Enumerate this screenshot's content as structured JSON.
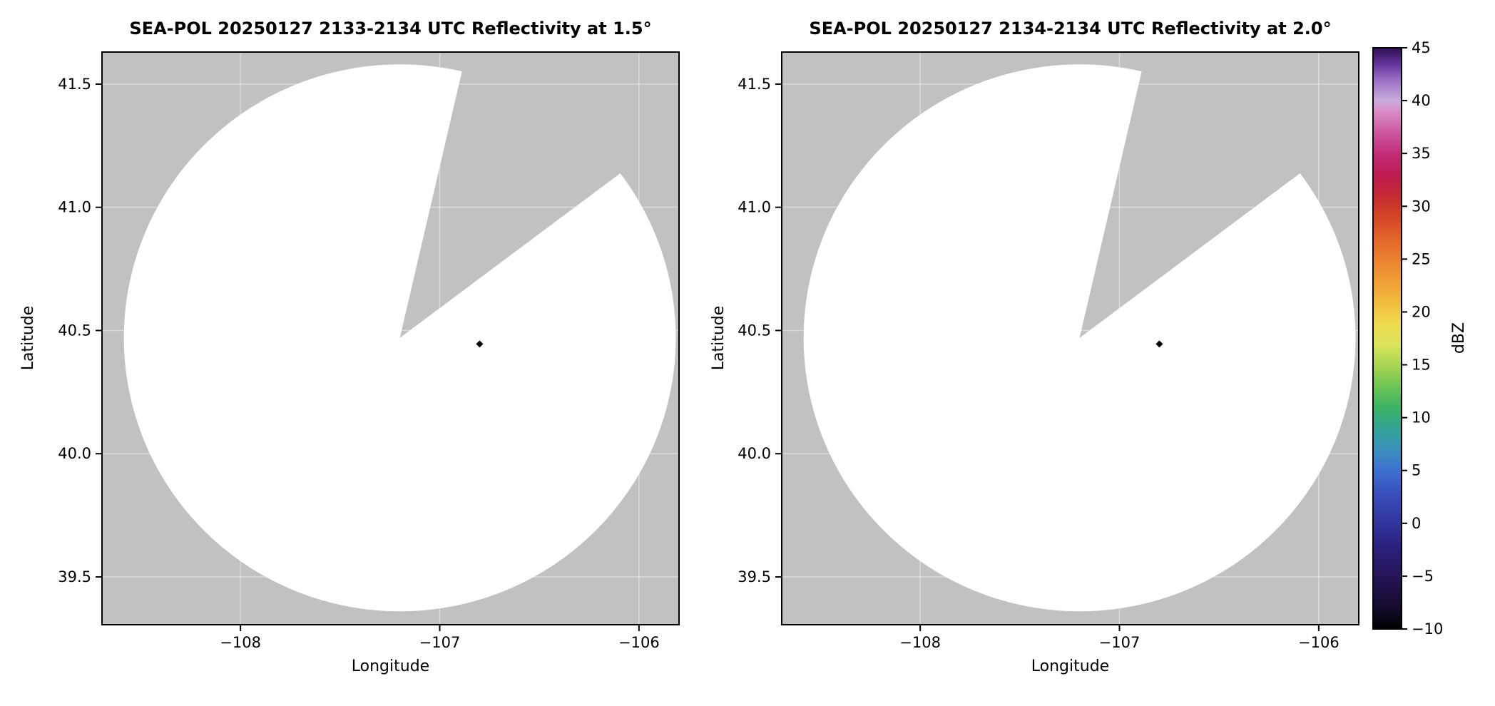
{
  "chart_data": {
    "type": "heatmap",
    "description": "Two side-by-side SEA-POL radar PPI reflectivity maps on latitude/longitude axes sharing a single dBZ colorbar. Radar coverage circle is white (no significant echo), area outside coverage and a blocked sector to the north-northeast is gray. One tiny near-threshold echo pixel appears east of the radar in each panel.",
    "panels": [
      {
        "title": "SEA-POL 20250127 2133-2134 UTC Reflectivity at 1.5°",
        "xlabel": "Longitude",
        "ylabel": "Latitude",
        "xlim": [
          -108.695,
          -105.799
        ],
        "ylim": [
          39.306,
          41.63
        ],
        "xticks": {
          "values": [
            -108,
            -107,
            -106
          ],
          "labels": [
            "−108",
            "−107",
            "−106"
          ]
        },
        "yticks": {
          "values": [
            39.5,
            40.0,
            40.5,
            41.0,
            41.5
          ],
          "labels": [
            "39.5",
            "40.0",
            "40.5",
            "41.0",
            "41.5"
          ]
        },
        "radar_coverage": {
          "center": {
            "lon": -107.2,
            "lat": 40.47
          },
          "radius_deg_lon": 1.385,
          "radius_deg_lat": 1.11,
          "blocked_sector_azimuth_deg": [
            13,
            53
          ],
          "inside_color": "#ffffff",
          "outside_color": "#c1c1c1"
        },
        "echoes": [
          {
            "lon": -106.8,
            "lat": 40.445,
            "approx_dbz": -10,
            "color": "#000000"
          }
        ],
        "grid": true
      },
      {
        "title": "SEA-POL 20250127 2134-2134 UTC Reflectivity at 2.0°",
        "xlabel": "Longitude",
        "ylabel": "Latitude",
        "xlim": [
          -108.695,
          -105.799
        ],
        "ylim": [
          39.306,
          41.63
        ],
        "xticks": {
          "values": [
            -108,
            -107,
            -106
          ],
          "labels": [
            "−108",
            "−107",
            "−106"
          ]
        },
        "yticks": {
          "values": [
            39.5,
            40.0,
            40.5,
            41.0,
            41.5
          ],
          "labels": [
            "39.5",
            "40.0",
            "40.5",
            "41.0",
            "41.5"
          ]
        },
        "radar_coverage": {
          "center": {
            "lon": -107.2,
            "lat": 40.47
          },
          "radius_deg_lon": 1.385,
          "radius_deg_lat": 1.11,
          "blocked_sector_azimuth_deg": [
            13,
            53
          ],
          "inside_color": "#ffffff",
          "outside_color": "#c1c1c1"
        },
        "echoes": [
          {
            "lon": -106.8,
            "lat": 40.445,
            "approx_dbz": -10,
            "color": "#000000"
          }
        ],
        "grid": true
      }
    ],
    "colorbar": {
      "label": "dBZ",
      "min": -10,
      "max": 45,
      "ticks": [
        -10,
        -5,
        0,
        5,
        10,
        15,
        20,
        25,
        30,
        35,
        40,
        45
      ],
      "tick_labels": [
        "−10",
        "−5",
        "0",
        "5",
        "10",
        "15",
        "20",
        "25",
        "30",
        "35",
        "40",
        "45"
      ],
      "stops": [
        {
          "value": -10,
          "color": "#000000"
        },
        {
          "value": -8,
          "color": "#140b2b"
        },
        {
          "value": -5,
          "color": "#241457"
        },
        {
          "value": -2,
          "color": "#2c2280"
        },
        {
          "value": 0,
          "color": "#32359c"
        },
        {
          "value": 3,
          "color": "#3a52be"
        },
        {
          "value": 5,
          "color": "#3d70d1"
        },
        {
          "value": 7,
          "color": "#3b90bb"
        },
        {
          "value": 9,
          "color": "#32a494"
        },
        {
          "value": 11,
          "color": "#3db363"
        },
        {
          "value": 13,
          "color": "#70c455"
        },
        {
          "value": 15,
          "color": "#aad551"
        },
        {
          "value": 17,
          "color": "#dde45b"
        },
        {
          "value": 19,
          "color": "#efd94f"
        },
        {
          "value": 21,
          "color": "#f1ba3d"
        },
        {
          "value": 23,
          "color": "#ef9d34"
        },
        {
          "value": 25,
          "color": "#ea812f"
        },
        {
          "value": 27,
          "color": "#e2642a"
        },
        {
          "value": 29,
          "color": "#d54526"
        },
        {
          "value": 31,
          "color": "#c52b34"
        },
        {
          "value": 33,
          "color": "#bd1c51"
        },
        {
          "value": 35,
          "color": "#c22d79"
        },
        {
          "value": 37,
          "color": "#cd58a0"
        },
        {
          "value": 39,
          "color": "#d88dc6"
        },
        {
          "value": 40,
          "color": "#c9abdc"
        },
        {
          "value": 42,
          "color": "#9a6fc4"
        },
        {
          "value": 43.5,
          "color": "#63339b"
        },
        {
          "value": 45,
          "color": "#2f0f4f"
        }
      ]
    }
  }
}
